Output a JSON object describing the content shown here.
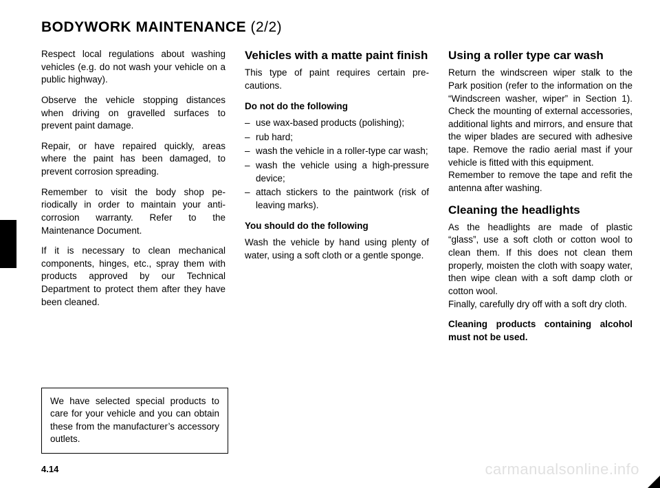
{
  "title_main": "BODYWORK MAINTENANCE ",
  "title_sub": "(2/2)",
  "col1": {
    "p1": "Respect local regulations about wash­ing vehicles (e.g. do not wash your ve­hicle on a public highway).",
    "p2": "Observe the vehicle stopping distances when driving on gravelled surfaces to prevent paint damage.",
    "p3": "Repair, or have repaired quickly, areas where the paint has been damaged, to prevent corrosion spreading.",
    "p4": "Remember to visit the body shop pe­riodically in order to maintain your anti-corrosion warranty. Refer to the Maintenance Document.",
    "p5": "If it is necessary to clean mechani­cal components, hinges, etc., spray them with products approved by our Technical Department to protect them after they have been cleaned."
  },
  "col2": {
    "h1": "Vehicles with a matte paint finish",
    "p1": "This type of paint requires certain pre­cautions.",
    "h2": "Do not do the following",
    "li1": "use wax-based products (polishing);",
    "li2": "rub hard;",
    "li3": "wash the vehicle in a roller-type car wash;",
    "li4": "wash the vehicle using a high-pres­sure device;",
    "li5": "attach stickers to the paintwork (risk of leaving marks).",
    "h3": "You should do the following",
    "p2": "Wash the vehicle by hand using plenty of water, using a soft cloth or a gentle sponge."
  },
  "col3": {
    "h1": "Using a roller type car wash",
    "p1": "Return the windscreen wiper stalk to the Park position (refer to the informa­tion on the “Windscreen washer, wiper” in Section 1). Check the mounting of external accessories, additional lights and mirrors, and ensure that the wiper blades are secured with adhesive tape. Remove the radio aerial mast if your vehicle is fitted with this equipment.",
    "p1b": "Remember to remove the tape and refit the antenna after washing.",
    "h2": "Cleaning the headlights",
    "p2": "As the headlights are made of plastic “glass”, use a soft cloth or cotton wool to clean them. If this does not clean them properly, moisten the cloth with soapy water, then wipe clean with a soft damp cloth or cotton wool.",
    "p2b": "Finally, carefully dry off with a soft dry cloth.",
    "p3": "Cleaning products containing alco­hol must not be used."
  },
  "note": "We have selected special products to care for your vehicle and you can obtain these from the manufactur­er’s accessory outlets.",
  "page_number": "4.14",
  "watermark": "carmanualsonline.info"
}
